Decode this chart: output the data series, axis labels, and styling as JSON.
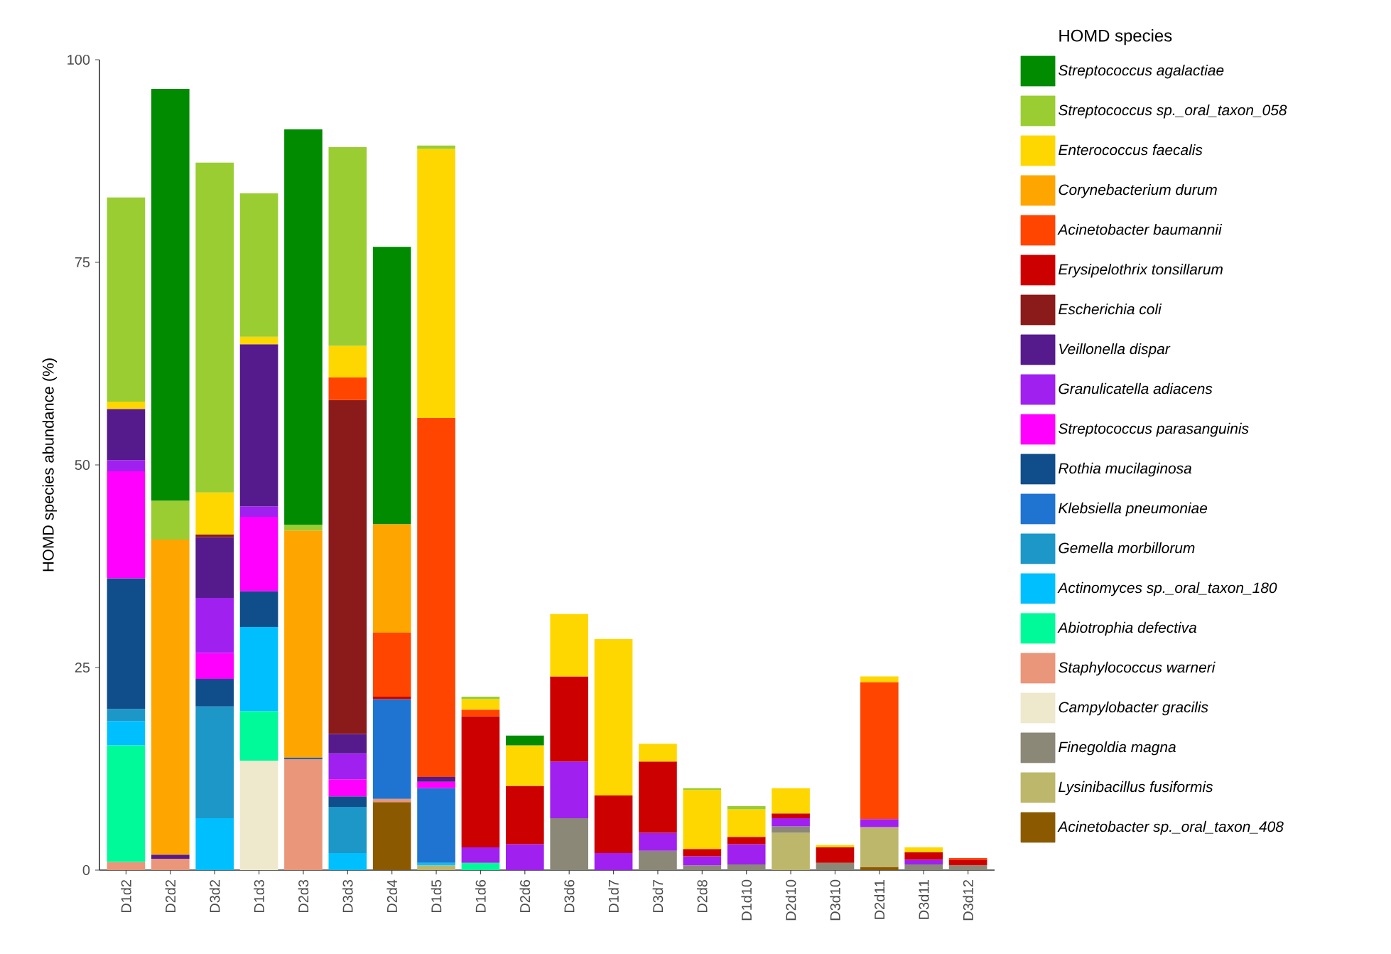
{
  "chart_data": {
    "type": "bar",
    "stacked": true,
    "ylabel": "HOMD species abundance (%)",
    "legend_title": "HOMD species",
    "legend": "right",
    "categories": [
      "D1d2",
      "D2d2",
      "D3d2",
      "D1d3",
      "D2d3",
      "D3d3",
      "D2d4",
      "D1d5",
      "D1d6",
      "D2d6",
      "D3d6",
      "D1d7",
      "D3d7",
      "D2d8",
      "D1d10",
      "D2d10",
      "D3d10",
      "D2d11",
      "D3d11",
      "D3d12"
    ],
    "ylim": [
      0,
      100
    ],
    "yticks": [
      0,
      25,
      50,
      75,
      100
    ],
    "series": [
      {
        "name": "Acinetobacter sp._oral_taxon_408",
        "color": "#8b5a00",
        "values": [
          null,
          null,
          null,
          null,
          null,
          null,
          8.4,
          null,
          null,
          null,
          null,
          null,
          null,
          null,
          null,
          null,
          null,
          0.4,
          null,
          null
        ]
      },
      {
        "name": "Lysinibacillus fusiformis",
        "color": "#bdb76b",
        "values": [
          null,
          null,
          null,
          null,
          null,
          null,
          null,
          0.6,
          null,
          null,
          null,
          null,
          null,
          null,
          null,
          4.6,
          null,
          4.9,
          null,
          null
        ]
      },
      {
        "name": "Finegoldia magna",
        "color": "#8b8878",
        "values": [
          null,
          null,
          null,
          null,
          null,
          null,
          null,
          null,
          null,
          null,
          6.4,
          null,
          2.4,
          0.6,
          0.7,
          0.8,
          0.9,
          null,
          0.7,
          0.6
        ]
      },
      {
        "name": "Campylobacter gracilis",
        "color": "#eee8cd",
        "values": [
          null,
          null,
          null,
          13.5,
          null,
          null,
          null,
          null,
          null,
          null,
          null,
          null,
          null,
          null,
          null,
          null,
          null,
          null,
          null,
          null
        ]
      },
      {
        "name": "Staphylococcus warneri",
        "color": "#e9967a",
        "values": [
          1.0,
          1.4,
          null,
          null,
          13.7,
          null,
          0.4,
          null,
          null,
          null,
          null,
          null,
          null,
          null,
          null,
          null,
          null,
          null,
          null,
          null
        ]
      },
      {
        "name": "Abiotrophia defectiva",
        "color": "#00fa9a",
        "values": [
          14.4,
          null,
          null,
          6.1,
          null,
          null,
          null,
          null,
          0.9,
          null,
          null,
          null,
          null,
          null,
          null,
          null,
          null,
          null,
          null,
          null
        ]
      },
      {
        "name": "Actinomyces sp._oral_taxon_180",
        "color": "#00bfff",
        "values": [
          3.0,
          null,
          6.4,
          10.4,
          null,
          2.1,
          null,
          0.3,
          null,
          null,
          null,
          null,
          null,
          null,
          null,
          null,
          null,
          null,
          null,
          null
        ]
      },
      {
        "name": "Gemella morbillorum",
        "color": "#1c97c8",
        "values": [
          1.5,
          null,
          13.8,
          null,
          null,
          5.7,
          null,
          null,
          null,
          null,
          null,
          null,
          null,
          null,
          null,
          null,
          null,
          null,
          null,
          null
        ]
      },
      {
        "name": "Klebsiella pneumoniae",
        "color": "#1e74d0",
        "values": [
          null,
          null,
          null,
          null,
          null,
          null,
          12.3,
          9.2,
          null,
          null,
          null,
          null,
          null,
          null,
          null,
          null,
          null,
          null,
          null,
          null
        ]
      },
      {
        "name": "Rothia mucilaginosa",
        "color": "#104e8b",
        "values": [
          16.1,
          null,
          3.4,
          4.4,
          0.2,
          1.3,
          null,
          null,
          null,
          null,
          null,
          null,
          null,
          null,
          null,
          null,
          null,
          null,
          null,
          null
        ]
      },
      {
        "name": "Streptococcus parasanguinis",
        "color": "#ff00ff",
        "values": [
          13.2,
          null,
          3.2,
          9.2,
          null,
          2.1,
          null,
          0.8,
          null,
          null,
          null,
          null,
          null,
          null,
          null,
          null,
          null,
          null,
          null,
          null
        ]
      },
      {
        "name": "Granulicatella adiacens",
        "color": "#a020f0",
        "values": [
          1.4,
          null,
          6.8,
          1.3,
          null,
          3.2,
          null,
          null,
          1.9,
          3.2,
          7.0,
          2.1,
          2.2,
          1.1,
          2.5,
          1.0,
          null,
          1.0,
          0.6,
          null
        ]
      },
      {
        "name": "Veillonella dispar",
        "color": "#551a8b",
        "values": [
          6.3,
          0.5,
          7.5,
          20.0,
          null,
          2.4,
          null,
          0.6,
          null,
          null,
          null,
          null,
          null,
          null,
          null,
          null,
          null,
          null,
          null,
          null
        ]
      },
      {
        "name": "Escherichia coli",
        "color": "#8b1a1a",
        "values": [
          null,
          null,
          0.3,
          null,
          null,
          41.2,
          null,
          null,
          null,
          null,
          null,
          null,
          null,
          null,
          null,
          null,
          null,
          null,
          null,
          null
        ]
      },
      {
        "name": "Erysipelothrix tonsillarum",
        "color": "#cd0000",
        "values": [
          null,
          null,
          null,
          null,
          null,
          null,
          0.3,
          null,
          16.2,
          7.2,
          10.5,
          7.1,
          8.8,
          0.9,
          0.9,
          0.6,
          1.9,
          null,
          0.9,
          0.7
        ]
      },
      {
        "name": "Acinetobacter baumannii",
        "color": "#ff4500",
        "values": [
          null,
          null,
          null,
          null,
          null,
          2.8,
          7.9,
          44.3,
          0.8,
          null,
          null,
          null,
          null,
          null,
          null,
          null,
          null,
          16.9,
          null,
          0.2
        ]
      },
      {
        "name": "Corynebacterium durum",
        "color": "#ffa500",
        "values": [
          null,
          38.9,
          null,
          null,
          28.0,
          null,
          13.4,
          null,
          null,
          null,
          null,
          null,
          null,
          null,
          null,
          null,
          null,
          null,
          null,
          null
        ]
      },
      {
        "name": "Enterococcus faecalis",
        "color": "#ffd700",
        "values": [
          0.9,
          null,
          5.2,
          0.9,
          null,
          3.9,
          null,
          33.2,
          1.3,
          5.0,
          7.7,
          19.3,
          2.2,
          7.3,
          3.4,
          3.1,
          0.3,
          0.7,
          0.6,
          null
        ]
      },
      {
        "name": "Streptococcus sp._oral_taxon_058",
        "color": "#9acd32",
        "values": [
          25.2,
          4.8,
          40.7,
          17.7,
          0.7,
          24.5,
          null,
          0.4,
          0.3,
          null,
          null,
          null,
          null,
          0.2,
          0.4,
          null,
          null,
          null,
          null,
          null
        ]
      },
      {
        "name": "Streptococcus agalactiae",
        "color": "#008b00",
        "values": [
          null,
          50.8,
          null,
          null,
          48.8,
          null,
          34.2,
          null,
          null,
          1.2,
          null,
          null,
          null,
          null,
          null,
          null,
          null,
          null,
          null,
          null
        ]
      }
    ]
  }
}
